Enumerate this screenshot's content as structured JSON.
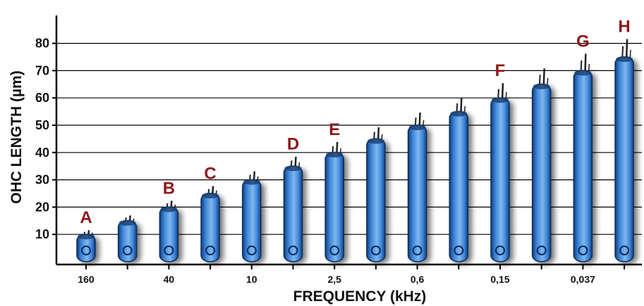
{
  "chart_data": {
    "type": "bar",
    "xlabel": "FREQUENCY (kHz)",
    "ylabel": "OHC LENGTH (µm)",
    "ylim": [
      0,
      90
    ],
    "yticks": [
      10,
      20,
      30,
      40,
      50,
      60,
      70,
      80
    ],
    "grid": true,
    "values": [
      10,
      15,
      20,
      25,
      30,
      35,
      40,
      45,
      50,
      55,
      60,
      65,
      70,
      75
    ],
    "x_tick_labels": [
      "160",
      "",
      "40",
      "",
      "10",
      "",
      "2,5",
      "",
      "0,6",
      "",
      "0,15",
      "",
      "0,037",
      ""
    ],
    "bar_letters": [
      "A",
      "",
      "B",
      "C",
      "",
      "D",
      "E",
      "",
      "",
      "",
      "F",
      "",
      "G",
      "H"
    ],
    "colors": {
      "bar": "#3f86d9",
      "bar_dark": "#0f3f80",
      "letter": "#8b1a1a",
      "axis": "#000000"
    }
  }
}
